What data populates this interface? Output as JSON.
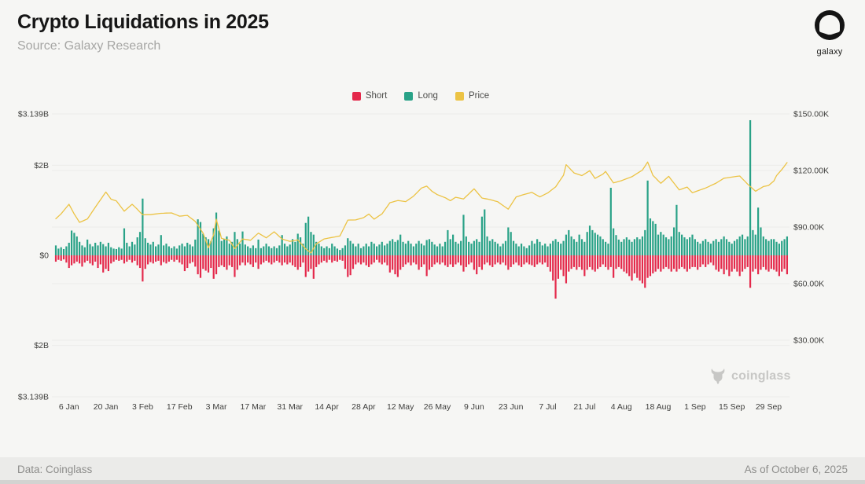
{
  "header": {
    "title": "Crypto Liquidations in 2025",
    "subtitle": "Source: Galaxy Research",
    "logo_label": "galaxy"
  },
  "legend": [
    {
      "label": "Short",
      "color": "#e4294b"
    },
    {
      "label": "Long",
      "color": "#29a287"
    },
    {
      "label": "Price",
      "color": "#ecc344"
    }
  ],
  "watermark": {
    "label": "coinglass"
  },
  "footer": {
    "left": "Data: Coinglass",
    "right": "As of October 6, 2025"
  },
  "colors": {
    "background": "#f6f6f4",
    "short": "#e4294b",
    "long": "#29a287",
    "price": "#ecc344",
    "grid": "#ececea",
    "tick_text": "#3e3e3c"
  },
  "chart_data": {
    "type": "bar+line",
    "title": "Crypto Liquidations in 2025",
    "description": "Daily crypto long/short liquidations (USD billions, mirrored bar axis) with BTC price line on right axis, Jan 1 - Oct 6 2025",
    "legend_position": "top-center",
    "grid": true,
    "left_axis": {
      "unit": "USD billions (liquidations)",
      "ticks": [
        {
          "value": 3.139,
          "label": "$3.139B"
        },
        {
          "value": 2,
          "label": "$2B"
        },
        {
          "value": 0,
          "label": "$0"
        },
        {
          "value": -2,
          "label": "$2B"
        },
        {
          "value": -3.139,
          "label": "$3.139B"
        }
      ],
      "ylim": [
        -3.139,
        3.139
      ]
    },
    "right_axis": {
      "unit": "USD thousands (price)",
      "ticks": [
        {
          "value": 150,
          "label": "$150.00K"
        },
        {
          "value": 120,
          "label": "$120.00K"
        },
        {
          "value": 90,
          "label": "$90.00K"
        },
        {
          "value": 60,
          "label": "$60.00K"
        },
        {
          "value": 30,
          "label": "$30.00K"
        }
      ],
      "ylim": [
        0,
        150
      ]
    },
    "x_ticks": [
      {
        "day": 5,
        "label": "6 Jan"
      },
      {
        "day": 19,
        "label": "20 Jan"
      },
      {
        "day": 33,
        "label": "3 Feb"
      },
      {
        "day": 47,
        "label": "17 Feb"
      },
      {
        "day": 61,
        "label": "3 Mar"
      },
      {
        "day": 75,
        "label": "17 Mar"
      },
      {
        "day": 89,
        "label": "31 Mar"
      },
      {
        "day": 103,
        "label": "14 Apr"
      },
      {
        "day": 117,
        "label": "28 Apr"
      },
      {
        "day": 131,
        "label": "12 May"
      },
      {
        "day": 145,
        "label": "26 May"
      },
      {
        "day": 159,
        "label": "9 Jun"
      },
      {
        "day": 173,
        "label": "23 Jun"
      },
      {
        "day": 187,
        "label": "7 Jul"
      },
      {
        "day": 201,
        "label": "21 Jul"
      },
      {
        "day": 215,
        "label": "4 Aug"
      },
      {
        "day": 229,
        "label": "18 Aug"
      },
      {
        "day": 243,
        "label": "1 Sep"
      },
      {
        "day": 257,
        "label": "15 Sep"
      },
      {
        "day": 271,
        "label": "29 Sep"
      }
    ],
    "series": {
      "long_b": [
        0.22,
        0.15,
        0.18,
        0.14,
        0.2,
        0.28,
        0.55,
        0.5,
        0.42,
        0.3,
        0.22,
        0.18,
        0.35,
        0.25,
        0.2,
        0.28,
        0.22,
        0.3,
        0.25,
        0.2,
        0.28,
        0.18,
        0.15,
        0.14,
        0.18,
        0.15,
        0.6,
        0.28,
        0.2,
        0.3,
        0.24,
        0.4,
        0.52,
        1.26,
        0.38,
        0.28,
        0.24,
        0.3,
        0.2,
        0.24,
        0.45,
        0.22,
        0.26,
        0.2,
        0.16,
        0.2,
        0.15,
        0.22,
        0.26,
        0.2,
        0.28,
        0.24,
        0.2,
        0.35,
        0.8,
        0.74,
        0.48,
        0.4,
        0.36,
        0.32,
        0.6,
        0.95,
        0.55,
        0.32,
        0.36,
        0.42,
        0.26,
        0.3,
        0.52,
        0.36,
        0.26,
        0.53,
        0.24,
        0.2,
        0.16,
        0.22,
        0.16,
        0.35,
        0.16,
        0.2,
        0.26,
        0.2,
        0.16,
        0.2,
        0.16,
        0.22,
        0.45,
        0.26,
        0.2,
        0.24,
        0.36,
        0.3,
        0.48,
        0.4,
        0.26,
        0.72,
        0.86,
        0.52,
        0.46,
        0.3,
        0.26,
        0.2,
        0.16,
        0.2,
        0.16,
        0.26,
        0.2,
        0.15,
        0.12,
        0.16,
        0.22,
        0.38,
        0.32,
        0.26,
        0.2,
        0.26,
        0.16,
        0.2,
        0.26,
        0.2,
        0.3,
        0.26,
        0.2,
        0.24,
        0.3,
        0.22,
        0.26,
        0.32,
        0.36,
        0.3,
        0.34,
        0.46,
        0.3,
        0.26,
        0.32,
        0.26,
        0.2,
        0.26,
        0.32,
        0.26,
        0.22,
        0.34,
        0.36,
        0.3,
        0.24,
        0.2,
        0.26,
        0.2,
        0.3,
        0.56,
        0.36,
        0.46,
        0.3,
        0.26,
        0.32,
        0.9,
        0.42,
        0.3,
        0.26,
        0.32,
        0.36,
        0.3,
        0.86,
        1.02,
        0.42,
        0.32,
        0.36,
        0.3,
        0.26,
        0.2,
        0.26,
        0.32,
        0.62,
        0.52,
        0.32,
        0.26,
        0.2,
        0.26,
        0.2,
        0.16,
        0.22,
        0.32,
        0.26,
        0.36,
        0.3,
        0.22,
        0.26,
        0.2,
        0.26,
        0.32,
        0.36,
        0.3,
        0.26,
        0.32,
        0.46,
        0.56,
        0.42,
        0.36,
        0.3,
        0.46,
        0.36,
        0.3,
        0.52,
        0.66,
        0.56,
        0.5,
        0.46,
        0.42,
        0.36,
        0.3,
        0.26,
        1.5,
        0.6,
        0.45,
        0.35,
        0.3,
        0.36,
        0.4,
        0.35,
        0.3,
        0.36,
        0.4,
        0.36,
        0.42,
        0.56,
        1.66,
        0.82,
        0.76,
        0.7,
        0.46,
        0.52,
        0.46,
        0.4,
        0.36,
        0.42,
        0.62,
        1.12,
        0.52,
        0.46,
        0.4,
        0.36,
        0.4,
        0.46,
        0.36,
        0.3,
        0.26,
        0.32,
        0.36,
        0.3,
        0.26,
        0.32,
        0.36,
        0.3,
        0.36,
        0.42,
        0.36,
        0.3,
        0.26,
        0.32,
        0.36,
        0.42,
        0.46,
        0.36,
        0.42,
        3.0,
        0.56,
        0.46,
        1.06,
        0.62,
        0.42,
        0.36,
        0.32,
        0.36,
        0.36,
        0.3,
        0.26,
        0.32,
        0.36,
        0.42
      ],
      "short_b": [
        0.14,
        0.1,
        0.12,
        0.09,
        0.16,
        0.28,
        0.22,
        0.18,
        0.14,
        0.18,
        0.25,
        0.16,
        0.12,
        0.18,
        0.22,
        0.14,
        0.28,
        0.2,
        0.38,
        0.3,
        0.35,
        0.18,
        0.14,
        0.1,
        0.12,
        0.1,
        0.18,
        0.14,
        0.1,
        0.16,
        0.12,
        0.22,
        0.28,
        0.58,
        0.3,
        0.2,
        0.15,
        0.18,
        0.14,
        0.12,
        0.22,
        0.15,
        0.18,
        0.14,
        0.1,
        0.14,
        0.1,
        0.16,
        0.2,
        0.35,
        0.28,
        0.18,
        0.15,
        0.25,
        0.42,
        0.5,
        0.3,
        0.34,
        0.38,
        0.28,
        0.52,
        0.42,
        0.26,
        0.22,
        0.26,
        0.32,
        0.22,
        0.26,
        0.48,
        0.32,
        0.22,
        0.16,
        0.22,
        0.16,
        0.2,
        0.26,
        0.16,
        0.3,
        0.2,
        0.16,
        0.12,
        0.16,
        0.2,
        0.16,
        0.12,
        0.16,
        0.22,
        0.16,
        0.2,
        0.16,
        0.22,
        0.26,
        0.32,
        0.26,
        0.16,
        0.48,
        0.36,
        0.3,
        0.52,
        0.26,
        0.2,
        0.16,
        0.12,
        0.16,
        0.1,
        0.16,
        0.12,
        0.14,
        0.1,
        0.12,
        0.3,
        0.48,
        0.44,
        0.3,
        0.2,
        0.16,
        0.2,
        0.16,
        0.22,
        0.26,
        0.2,
        0.16,
        0.1,
        0.16,
        0.2,
        0.16,
        0.22,
        0.38,
        0.32,
        0.42,
        0.48,
        0.32,
        0.26,
        0.2,
        0.16,
        0.22,
        0.16,
        0.2,
        0.32,
        0.26,
        0.2,
        0.46,
        0.32,
        0.26,
        0.2,
        0.16,
        0.2,
        0.16,
        0.22,
        0.26,
        0.2,
        0.26,
        0.2,
        0.16,
        0.22,
        0.36,
        0.26,
        0.2,
        0.16,
        0.32,
        0.42,
        0.26,
        0.32,
        0.2,
        0.16,
        0.22,
        0.26,
        0.2,
        0.16,
        0.2,
        0.16,
        0.22,
        0.32,
        0.26,
        0.2,
        0.16,
        0.22,
        0.26,
        0.2,
        0.16,
        0.2,
        0.22,
        0.26,
        0.2,
        0.16,
        0.2,
        0.16,
        0.26,
        0.36,
        0.56,
        0.96,
        0.52,
        0.32,
        0.46,
        0.62,
        0.36,
        0.3,
        0.26,
        0.32,
        0.26,
        0.32,
        0.46,
        0.32,
        0.26,
        0.32,
        0.36,
        0.3,
        0.26,
        0.2,
        0.26,
        0.32,
        0.26,
        0.5,
        0.3,
        0.26,
        0.3,
        0.36,
        0.4,
        0.46,
        0.56,
        0.4,
        0.5,
        0.56,
        0.62,
        0.72,
        0.5,
        0.46,
        0.4,
        0.36,
        0.3,
        0.36,
        0.3,
        0.26,
        0.3,
        0.36,
        0.3,
        0.36,
        0.3,
        0.26,
        0.3,
        0.36,
        0.3,
        0.26,
        0.26,
        0.32,
        0.26,
        0.2,
        0.26,
        0.2,
        0.16,
        0.22,
        0.32,
        0.36,
        0.3,
        0.42,
        0.32,
        0.46,
        0.36,
        0.3,
        0.36,
        0.46,
        0.36,
        0.3,
        0.26,
        0.72,
        0.36,
        0.3,
        0.42,
        0.32,
        0.26,
        0.32,
        0.36,
        0.3,
        0.32,
        0.36,
        0.46,
        0.36,
        0.3,
        0.42
      ],
      "price_keypoints_k": [
        [
          0,
          94.4
        ],
        [
          2,
          97.0
        ],
        [
          5,
          102.1
        ],
        [
          7,
          96.9
        ],
        [
          9,
          92.5
        ],
        [
          12,
          94.3
        ],
        [
          15,
          100.5
        ],
        [
          19,
          108.6
        ],
        [
          21,
          104.8
        ],
        [
          23,
          103.9
        ],
        [
          26,
          98.4
        ],
        [
          29,
          102.1
        ],
        [
          31,
          99.4
        ],
        [
          33,
          96.5
        ],
        [
          36,
          96.6
        ],
        [
          40,
          97.3
        ],
        [
          44,
          97.5
        ],
        [
          47,
          95.8
        ],
        [
          50,
          96.2
        ],
        [
          53,
          93.0
        ],
        [
          56,
          86.8
        ],
        [
          58,
          79.0
        ],
        [
          60,
          86.0
        ],
        [
          61,
          94.2
        ],
        [
          63,
          84.0
        ],
        [
          66,
          83.0
        ],
        [
          68,
          78.6
        ],
        [
          71,
          83.7
        ],
        [
          74,
          83.0
        ],
        [
          77,
          86.8
        ],
        [
          80,
          84.3
        ],
        [
          83,
          87.5
        ],
        [
          86,
          83.7
        ],
        [
          89,
          82.4
        ],
        [
          92,
          83.2
        ],
        [
          95,
          78.4
        ],
        [
          97,
          76.3
        ],
        [
          99,
          81.1
        ],
        [
          102,
          83.7
        ],
        [
          105,
          84.5
        ],
        [
          108,
          85.3
        ],
        [
          111,
          93.7
        ],
        [
          114,
          93.8
        ],
        [
          117,
          95.0
        ],
        [
          119,
          96.9
        ],
        [
          121,
          94.2
        ],
        [
          124,
          97.0
        ],
        [
          127,
          102.9
        ],
        [
          130,
          104.1
        ],
        [
          133,
          103.5
        ],
        [
          136,
          106.4
        ],
        [
          139,
          110.7
        ],
        [
          141,
          111.7
        ],
        [
          143,
          109.0
        ],
        [
          145,
          107.2
        ],
        [
          148,
          105.6
        ],
        [
          150,
          104.0
        ],
        [
          152,
          105.8
        ],
        [
          155,
          104.9
        ],
        [
          159,
          110.3
        ],
        [
          162,
          105.4
        ],
        [
          165,
          104.6
        ],
        [
          168,
          103.4
        ],
        [
          172,
          99.5
        ],
        [
          175,
          106.0
        ],
        [
          178,
          107.3
        ],
        [
          181,
          108.4
        ],
        [
          184,
          106.0
        ],
        [
          187,
          108.1
        ],
        [
          190,
          111.3
        ],
        [
          193,
          117.5
        ],
        [
          194,
          123.1
        ],
        [
          197,
          118.7
        ],
        [
          200,
          117.3
        ],
        [
          203,
          119.9
        ],
        [
          205,
          115.8
        ],
        [
          208,
          118.1
        ],
        [
          209,
          119.5
        ],
        [
          212,
          113.4
        ],
        [
          215,
          114.6
        ],
        [
          219,
          116.7
        ],
        [
          223,
          120.2
        ],
        [
          225,
          124.5
        ],
        [
          227,
          117.4
        ],
        [
          230,
          113.2
        ],
        [
          233,
          116.9
        ],
        [
          237,
          109.7
        ],
        [
          240,
          111.2
        ],
        [
          242,
          108.2
        ],
        [
          247,
          110.7
        ],
        [
          251,
          113.3
        ],
        [
          254,
          115.9
        ],
        [
          260,
          117.1
        ],
        [
          263,
          112.8
        ],
        [
          266,
          109.0
        ],
        [
          269,
          111.5
        ],
        [
          271,
          112.1
        ],
        [
          273,
          114.5
        ],
        [
          274,
          117.3
        ],
        [
          276,
          120.5
        ],
        [
          278,
          124.2
        ]
      ]
    }
  }
}
